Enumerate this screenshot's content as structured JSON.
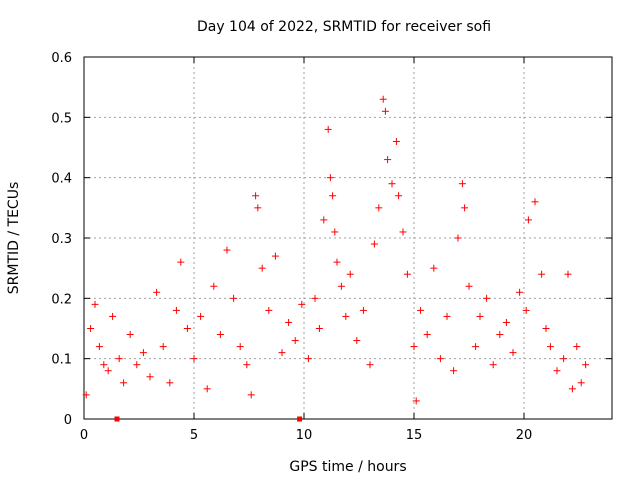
{
  "chart_data": {
    "type": "scatter",
    "title": "Day 104 of 2022, SRMTID for receiver sofi",
    "xlabel": "GPS time / hours",
    "ylabel": "SRMTID / TECUs",
    "xlim": [
      0,
      24
    ],
    "ylim": [
      0,
      0.6
    ],
    "xticks": [
      "0",
      "5",
      "10",
      "15",
      "20"
    ],
    "yticks": [
      "0",
      "0.1",
      "0.2",
      "0.3",
      "0.4",
      "0.5",
      "0.6"
    ],
    "grid": true,
    "marker": "plus",
    "color": "#ff0000",
    "baseline_markers": [
      1.5,
      9.8
    ],
    "series": [
      {
        "name": "SRMTID",
        "points": [
          [
            0.1,
            0.04
          ],
          [
            0.3,
            0.15
          ],
          [
            0.5,
            0.19
          ],
          [
            0.7,
            0.12
          ],
          [
            0.9,
            0.09
          ],
          [
            1.1,
            0.08
          ],
          [
            1.3,
            0.17
          ],
          [
            1.6,
            0.1
          ],
          [
            1.8,
            0.06
          ],
          [
            2.1,
            0.14
          ],
          [
            2.4,
            0.09
          ],
          [
            2.7,
            0.11
          ],
          [
            3.0,
            0.07
          ],
          [
            3.3,
            0.21
          ],
          [
            3.6,
            0.12
          ],
          [
            3.9,
            0.06
          ],
          [
            4.2,
            0.18
          ],
          [
            4.4,
            0.26
          ],
          [
            4.7,
            0.15
          ],
          [
            5.0,
            0.1
          ],
          [
            5.3,
            0.17
          ],
          [
            5.6,
            0.05
          ],
          [
            5.9,
            0.22
          ],
          [
            6.2,
            0.14
          ],
          [
            6.5,
            0.28
          ],
          [
            6.8,
            0.2
          ],
          [
            7.1,
            0.12
          ],
          [
            7.4,
            0.09
          ],
          [
            7.6,
            0.04
          ],
          [
            7.8,
            0.37
          ],
          [
            7.9,
            0.35
          ],
          [
            8.1,
            0.25
          ],
          [
            8.4,
            0.18
          ],
          [
            8.7,
            0.27
          ],
          [
            9.0,
            0.11
          ],
          [
            9.3,
            0.16
          ],
          [
            9.6,
            0.13
          ],
          [
            9.9,
            0.19
          ],
          [
            10.2,
            0.1
          ],
          [
            10.5,
            0.2
          ],
          [
            10.7,
            0.15
          ],
          [
            10.9,
            0.33
          ],
          [
            11.1,
            0.48
          ],
          [
            11.2,
            0.4
          ],
          [
            11.3,
            0.37
          ],
          [
            11.4,
            0.31
          ],
          [
            11.5,
            0.26
          ],
          [
            11.7,
            0.22
          ],
          [
            11.9,
            0.17
          ],
          [
            12.1,
            0.24
          ],
          [
            12.4,
            0.13
          ],
          [
            12.7,
            0.18
          ],
          [
            13.0,
            0.09
          ],
          [
            13.2,
            0.29
          ],
          [
            13.4,
            0.35
          ],
          [
            13.6,
            0.53
          ],
          [
            13.7,
            0.51
          ],
          [
            13.8,
            0.43
          ],
          [
            14.0,
            0.39
          ],
          [
            14.2,
            0.46
          ],
          [
            14.3,
            0.37
          ],
          [
            14.5,
            0.31
          ],
          [
            14.7,
            0.24
          ],
          [
            15.0,
            0.12
          ],
          [
            15.1,
            0.03
          ],
          [
            15.3,
            0.18
          ],
          [
            15.6,
            0.14
          ],
          [
            15.9,
            0.25
          ],
          [
            16.2,
            0.1
          ],
          [
            16.5,
            0.17
          ],
          [
            16.8,
            0.08
          ],
          [
            17.0,
            0.3
          ],
          [
            17.2,
            0.39
          ],
          [
            17.3,
            0.35
          ],
          [
            17.5,
            0.22
          ],
          [
            17.8,
            0.12
          ],
          [
            18.0,
            0.17
          ],
          [
            18.3,
            0.2
          ],
          [
            18.6,
            0.09
          ],
          [
            18.9,
            0.14
          ],
          [
            19.2,
            0.16
          ],
          [
            19.5,
            0.11
          ],
          [
            19.8,
            0.21
          ],
          [
            20.1,
            0.18
          ],
          [
            20.2,
            0.33
          ],
          [
            20.5,
            0.36
          ],
          [
            20.8,
            0.24
          ],
          [
            21.0,
            0.15
          ],
          [
            21.2,
            0.12
          ],
          [
            21.5,
            0.08
          ],
          [
            21.8,
            0.1
          ],
          [
            22.0,
            0.24
          ],
          [
            22.2,
            0.05
          ],
          [
            22.4,
            0.12
          ],
          [
            22.6,
            0.06
          ],
          [
            22.8,
            0.09
          ]
        ]
      }
    ]
  }
}
